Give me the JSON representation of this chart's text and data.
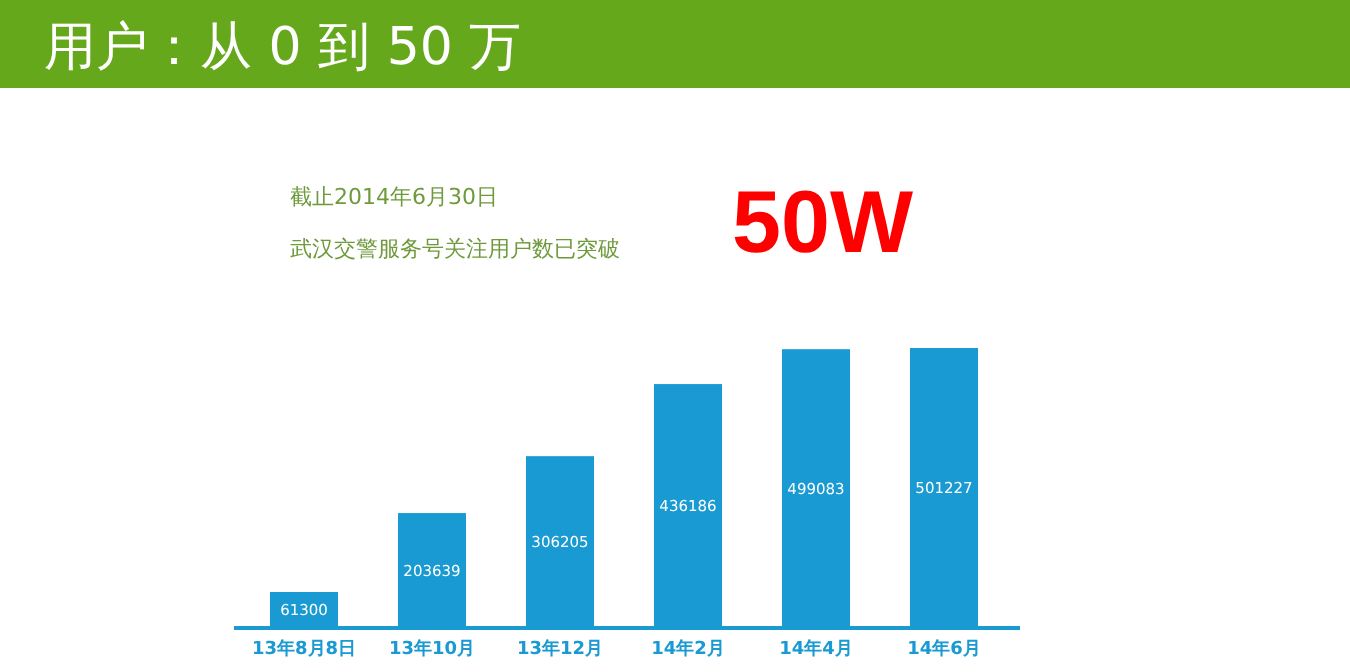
{
  "chart_data": {
    "type": "bar",
    "title": "用户：从 0 到 50 万",
    "subtitle": "截止2014年6月30日",
    "annotations": [
      "武汉交警服务号关注用户数已突破",
      "50W"
    ],
    "categories": [
      "13年8月8日",
      "13年10月",
      "13年12月",
      "14年2月",
      "14年4月",
      "14年6月"
    ],
    "values": [
      61300,
      203639,
      306205,
      436186,
      499083,
      501227
    ],
    "color": "#1a9ad2",
    "data_labels": true
  }
}
